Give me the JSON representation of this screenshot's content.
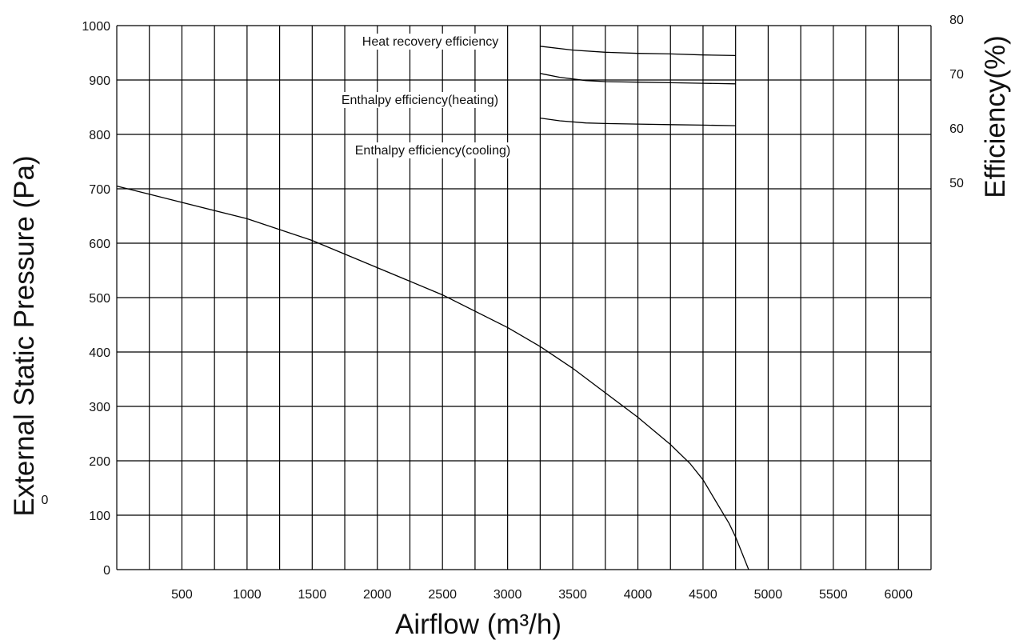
{
  "chart_data": {
    "type": "line",
    "xlabel": "Airflow (m³/h)",
    "ylabel": "External Static Pressure (Pa)",
    "y2label": "Efficiency(%)",
    "xlim": [
      0,
      6250
    ],
    "ylim": [
      0,
      1000
    ],
    "y2ticks": [
      "80",
      "70",
      "60",
      "50"
    ],
    "xtick_labels": [
      "500",
      "1000",
      "1500",
      "2000",
      "2500",
      "3000",
      "3500",
      "4000",
      "4500",
      "5000",
      "5500",
      "6000"
    ],
    "ytick_labels": [
      "0",
      "100",
      "200",
      "300",
      "400",
      "500",
      "600",
      "700",
      "800",
      "900",
      "1000"
    ],
    "stray_label": "0",
    "grid": true,
    "series": [
      {
        "axis": "pressure",
        "x": [
          0,
          250,
          500,
          1000,
          1500,
          2000,
          2500,
          3000,
          3250,
          3500,
          4000,
          4250,
          4400,
          4500,
          4600,
          4700,
          4750,
          4850
        ],
        "values": [
          705,
          690,
          675,
          645,
          605,
          555,
          505,
          445,
          410,
          370,
          280,
          230,
          195,
          165,
          125,
          85,
          60,
          0
        ]
      },
      {
        "name": "Heat recovery efficiency",
        "axis": "efficiency",
        "x": [
          3250,
          3500,
          3750,
          4000,
          4250,
          4500,
          4750
        ],
        "values": [
          76.2,
          75.5,
          75.1,
          74.9,
          74.8,
          74.6,
          74.5
        ]
      },
      {
        "name": "Enthalpy efficiency(heating)",
        "axis": "efficiency",
        "x": [
          3250,
          3400,
          3600,
          3750,
          4000,
          4250,
          4500,
          4750
        ],
        "values": [
          71.2,
          70.5,
          69.9,
          69.7,
          69.6,
          69.5,
          69.4,
          69.3
        ]
      },
      {
        "name": "Enthalpy efficiency(cooling)",
        "axis": "efficiency",
        "x": [
          3250,
          3400,
          3600,
          3750,
          4000,
          4250,
          4500,
          4750
        ],
        "values": [
          63.0,
          62.5,
          62.1,
          62.0,
          61.9,
          61.8,
          61.7,
          61.6
        ]
      }
    ]
  }
}
